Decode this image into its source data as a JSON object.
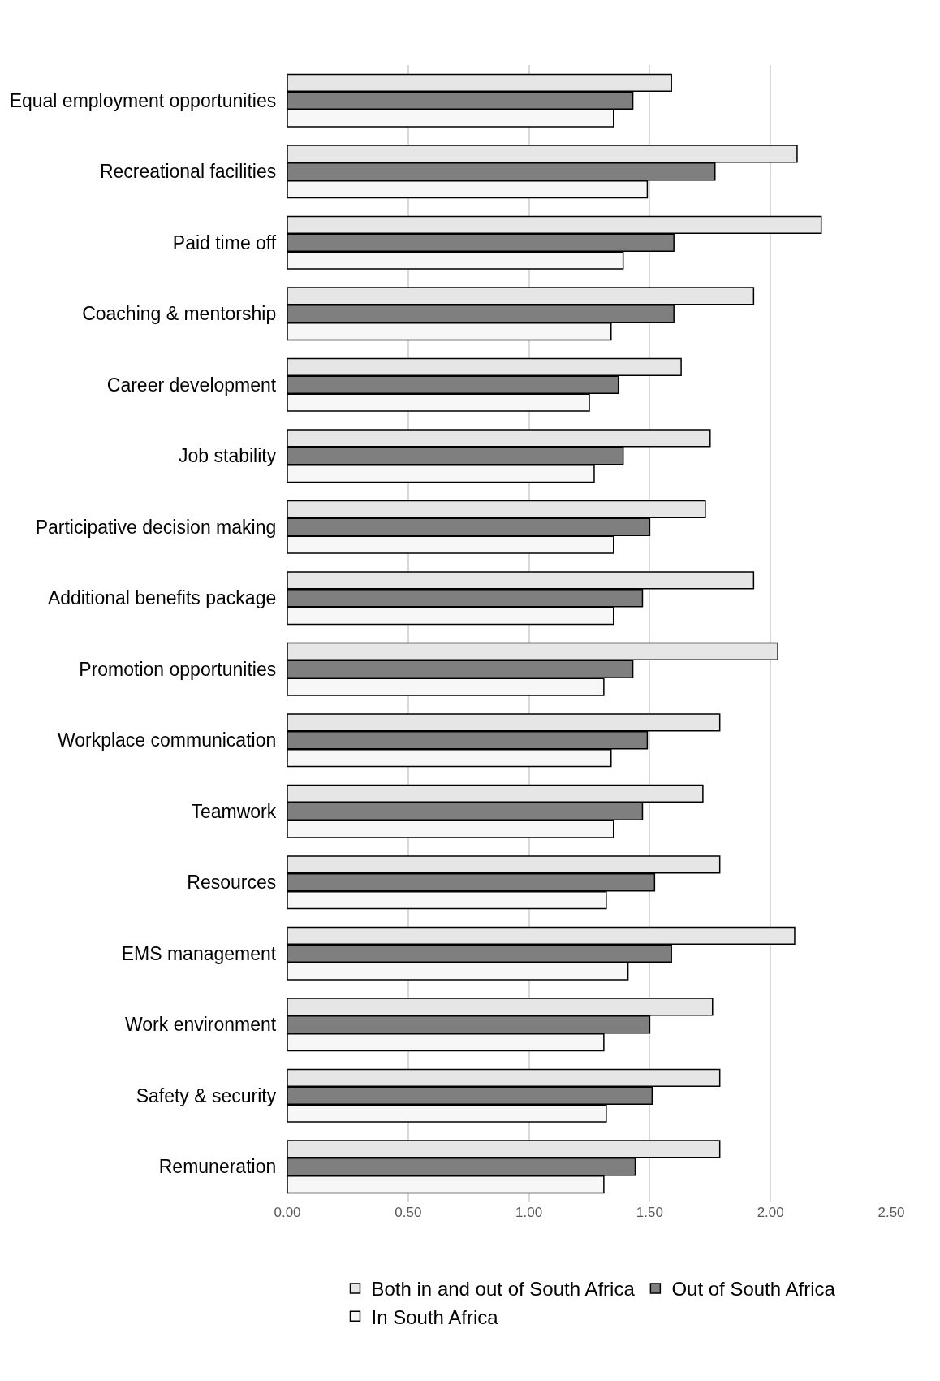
{
  "chart_data": {
    "type": "bar",
    "orientation": "horizontal",
    "categories": [
      "Equal employment opportunities",
      "Recreational facilities",
      "Paid time off",
      "Coaching & mentorship",
      "Career development",
      "Job stability",
      "Participative decision making",
      "Additional benefits package",
      "Promotion opportunities",
      "Workplace communication",
      "Teamwork",
      "Resources",
      "EMS management",
      "Work environment",
      "Safety & security",
      "Remuneration"
    ],
    "series": [
      {
        "name": "Both in and out of South Africa",
        "color": "#e6e6e6",
        "values": [
          1.59,
          2.11,
          2.21,
          1.93,
          1.63,
          1.75,
          1.73,
          1.93,
          2.03,
          1.79,
          1.72,
          1.79,
          2.1,
          1.76,
          1.79,
          1.79
        ]
      },
      {
        "name": "Out of South Africa",
        "color": "#7f7f7f",
        "values": [
          1.43,
          1.77,
          1.6,
          1.6,
          1.37,
          1.39,
          1.5,
          1.47,
          1.43,
          1.49,
          1.47,
          1.52,
          1.59,
          1.5,
          1.51,
          1.44
        ]
      },
      {
        "name": "In South Africa",
        "color": "#f7f7f7",
        "values": [
          1.35,
          1.49,
          1.39,
          1.34,
          1.25,
          1.27,
          1.35,
          1.35,
          1.31,
          1.34,
          1.35,
          1.32,
          1.41,
          1.31,
          1.32,
          1.31
        ]
      }
    ],
    "xlim": [
      0,
      2.5
    ],
    "xticks": [
      {
        "value": 0,
        "label": "0.00"
      },
      {
        "value": 0.5,
        "label": "0.50"
      },
      {
        "value": 1,
        "label": "1.00"
      },
      {
        "value": 1.5,
        "label": "1.50"
      },
      {
        "value": 2,
        "label": "2.00"
      },
      {
        "value": 2.5,
        "label": "2.50"
      }
    ],
    "grid": "x",
    "legend": "bottom"
  }
}
